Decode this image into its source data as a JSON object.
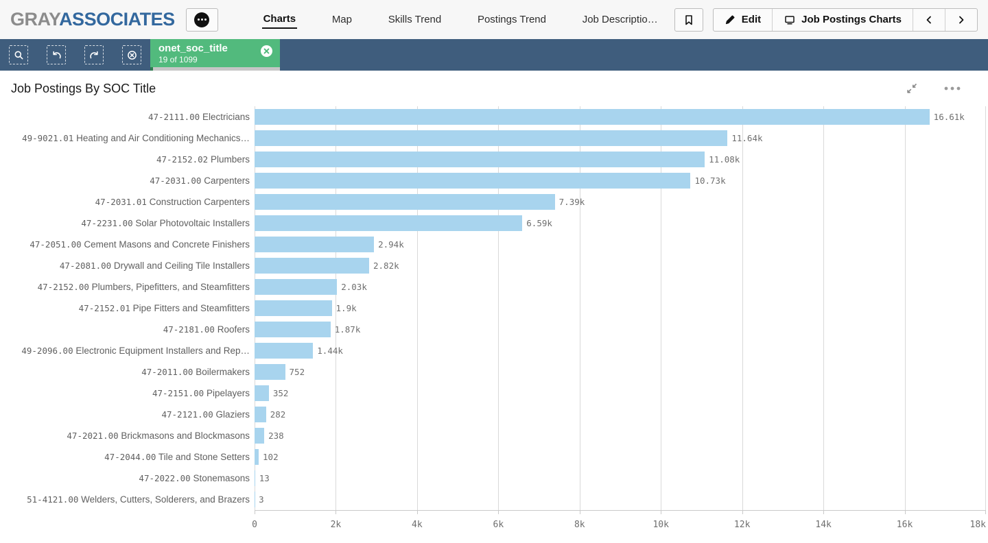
{
  "brand": {
    "part1": "GRAY",
    "part2": "ASSOCIATES"
  },
  "nav": {
    "tabs": [
      {
        "id": "charts",
        "label": "Charts",
        "active": true
      },
      {
        "id": "map",
        "label": "Map",
        "active": false
      },
      {
        "id": "skills-trend",
        "label": "Skills Trend",
        "active": false
      },
      {
        "id": "postings-trend",
        "label": "Postings Trend",
        "active": false
      },
      {
        "id": "job-description",
        "label": "Job Descriptio…",
        "active": false
      }
    ],
    "edit_label": "Edit",
    "sheet_label": "Job Postings Charts"
  },
  "selections": {
    "field_name": "onet_soc_title",
    "selection_count": "19 of 1099"
  },
  "chart": {
    "title": "Job Postings By SOC Title"
  },
  "chart_data": {
    "type": "bar",
    "orientation": "horizontal",
    "title": "Job Postings By SOC Title",
    "xlabel": "",
    "ylabel": "",
    "xlim": [
      0,
      18000
    ],
    "grid": true,
    "legend": false,
    "bar_color": "#a8d4ee",
    "categories": [
      "47-2111.00 Electricians",
      "49-9021.01 Heating and Air Conditioning Mechanics…",
      "47-2152.02 Plumbers",
      "47-2031.00 Carpenters",
      "47-2031.01 Construction Carpenters",
      "47-2231.00 Solar Photovoltaic Installers",
      "47-2051.00 Cement Masons and Concrete Finishers",
      "47-2081.00 Drywall and Ceiling Tile Installers",
      "47-2152.00 Plumbers, Pipefitters, and Steamfitters",
      "47-2152.01 Pipe Fitters and Steamfitters",
      "47-2181.00 Roofers",
      "49-2096.00 Electronic Equipment Installers and Rep…",
      "47-2011.00 Boilermakers",
      "47-2151.00 Pipelayers",
      "47-2121.00 Glaziers",
      "47-2021.00 Brickmasons and Blockmasons",
      "47-2044.00 Tile and Stone Setters",
      "47-2022.00 Stonemasons",
      "51-4121.00 Welders, Cutters, Solderers, and Brazers"
    ],
    "values": [
      16610,
      11640,
      11080,
      10730,
      7390,
      6590,
      2940,
      2820,
      2030,
      1900,
      1870,
      1440,
      752,
      352,
      282,
      238,
      102,
      13,
      3
    ],
    "value_labels": [
      "16.61k",
      "11.64k",
      "11.08k",
      "10.73k",
      "7.39k",
      "6.59k",
      "2.94k",
      "2.82k",
      "2.03k",
      "1.9k",
      "1.87k",
      "1.44k",
      "752",
      "352",
      "282",
      "238",
      "102",
      "13",
      "3"
    ],
    "x_ticks": [
      "0",
      "2k",
      "4k",
      "6k",
      "8k",
      "10k",
      "12k",
      "14k",
      "16k",
      "18k"
    ]
  },
  "colors": {
    "selection_bar": "#3f5d7d",
    "selection_chip": "#52ba7d",
    "selection_ratio_fill": "#2f7d4f",
    "bar_fill": "#a8d4ee",
    "brand_gray": "#8c8c8c",
    "brand_blue": "#33689e",
    "gridline": "#d9d9d9"
  }
}
